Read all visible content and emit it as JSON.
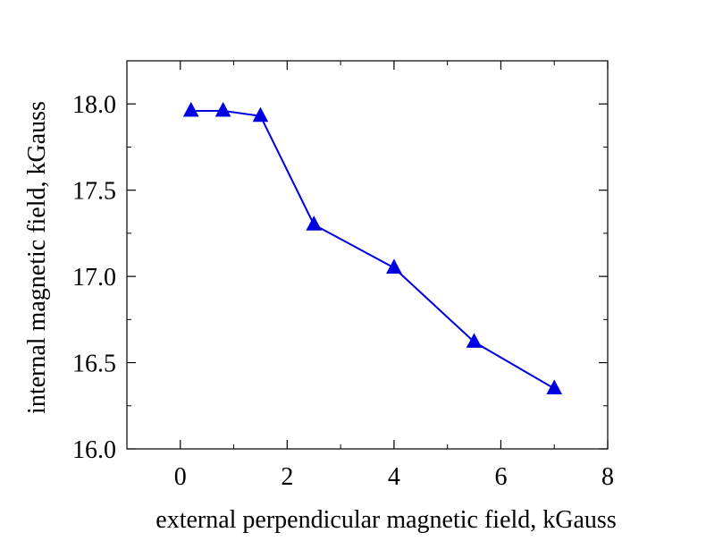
{
  "chart_data": {
    "type": "line",
    "title": "",
    "xlabel": "external perpendicular magnetic field, kGauss",
    "ylabel": "internal magnetic field, kGauss",
    "xlim": [
      -1,
      8
    ],
    "ylim": [
      16.0,
      18.25
    ],
    "xticks": [
      0,
      2,
      4,
      6,
      8
    ],
    "xtick_labels": [
      "0",
      "2",
      "4",
      "6",
      "8"
    ],
    "yticks": [
      16.0,
      16.5,
      17.0,
      17.5,
      18.0
    ],
    "ytick_labels": [
      "16.0",
      "16.5",
      "17.0",
      "17.5",
      "18.0"
    ],
    "grid": false,
    "legend": "none",
    "series": [
      {
        "marker": "triangle",
        "color": "#0000e0",
        "x": [
          0.2,
          0.8,
          1.5,
          2.5,
          4.0,
          5.5,
          7.0
        ],
        "y": [
          17.96,
          17.96,
          17.93,
          17.3,
          17.05,
          16.62,
          16.35
        ]
      }
    ]
  }
}
